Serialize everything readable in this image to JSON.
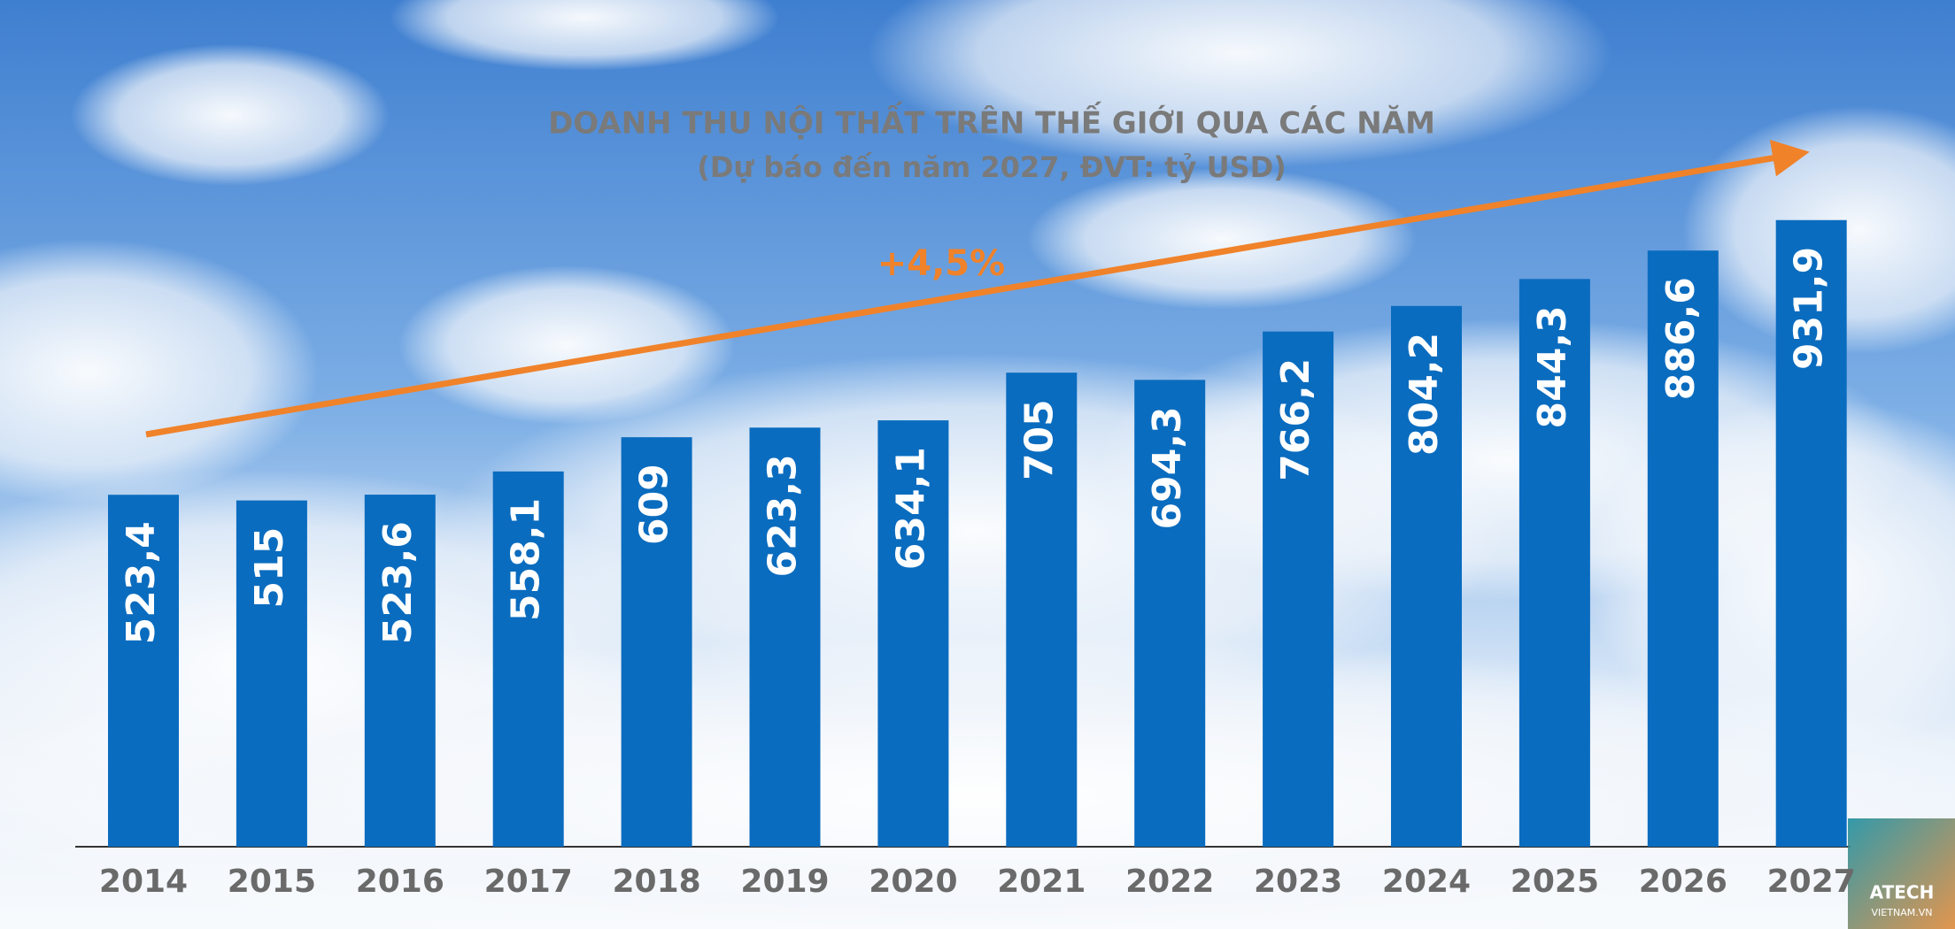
{
  "chart_data": {
    "type": "bar",
    "title": "DOANH THU NỘI THẤT TRÊN THẾ GIỚI QUA CÁC NĂM",
    "subtitle": "(Dự báo đến năm 2027, ĐVT: tỷ USD)",
    "annotation": "+4,5%",
    "categories": [
      "2014",
      "2015",
      "2016",
      "2017",
      "2018",
      "2019",
      "2020",
      "2021",
      "2022",
      "2023",
      "2024",
      "2025",
      "2026",
      "2027"
    ],
    "values": [
      523.4,
      515,
      523.6,
      558.1,
      609,
      623.3,
      634.1,
      705,
      694.3,
      766.2,
      804.2,
      844.3,
      886.6,
      931.9
    ],
    "value_labels": [
      "523,4",
      "515",
      "523,6",
      "558,1",
      "609",
      "623,3",
      "634,1",
      "705",
      "694,3",
      "766,2",
      "804,2",
      "844,3",
      "886,6",
      "931,9"
    ],
    "color": "#0a6cbf",
    "ylim": [
      0,
      1000
    ],
    "watermark": [
      "ATECH",
      "VIETNAM.VN"
    ]
  }
}
